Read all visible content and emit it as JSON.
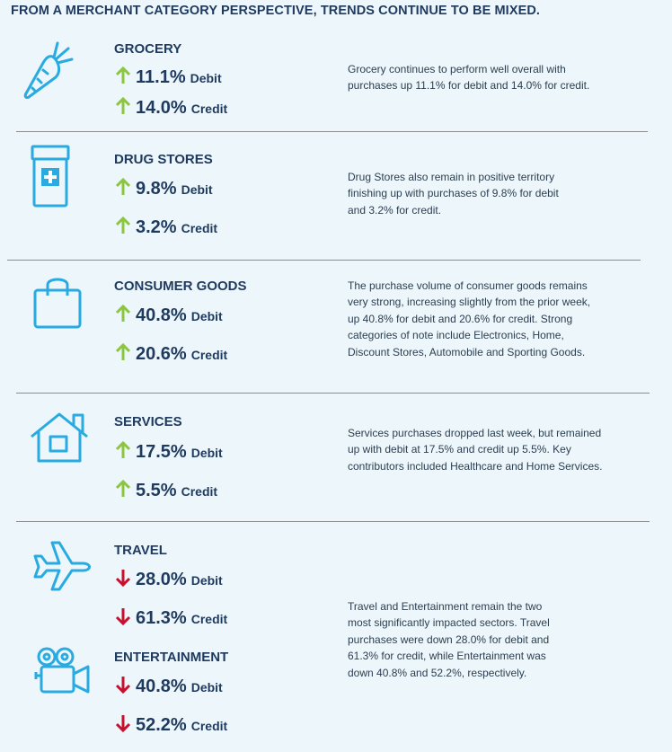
{
  "title": "FROM A MERCHANT CATEGORY PERSPECTIVE, TRENDS CONTINUE TO BE MIXED.",
  "colors": {
    "up": "#8cc63f",
    "down": "#c8102e",
    "icon": "#29abe2",
    "text": "#1f3a5f"
  },
  "sections": [
    {
      "name": "GROCERY",
      "icon": "carrot-icon",
      "debit": {
        "direction": "up",
        "value": "11.1%",
        "label": "Debit"
      },
      "credit": {
        "direction": "up",
        "value": "14.0%",
        "label": "Credit"
      }
    },
    {
      "name": "DRUG STORES",
      "icon": "medicine-bottle-icon",
      "debit": {
        "direction": "up",
        "value": "9.8%",
        "label": "Debit"
      },
      "credit": {
        "direction": "up",
        "value": "3.2%",
        "label": "Credit"
      }
    },
    {
      "name": "CONSUMER GOODS",
      "icon": "shopping-bag-icon",
      "debit": {
        "direction": "up",
        "value": "40.8%",
        "label": "Debit"
      },
      "credit": {
        "direction": "up",
        "value": "20.6%",
        "label": "Credit"
      }
    },
    {
      "name": "SERVICES",
      "icon": "house-icon",
      "debit": {
        "direction": "up",
        "value": "17.5%",
        "label": "Debit"
      },
      "credit": {
        "direction": "up",
        "value": "5.5%",
        "label": "Credit"
      }
    },
    {
      "name": "TRAVEL",
      "icon": "airplane-icon",
      "debit": {
        "direction": "down",
        "value": "28.0%",
        "label": "Debit"
      },
      "credit": {
        "direction": "down",
        "value": "61.3%",
        "label": "Credit"
      }
    },
    {
      "name": "ENTERTAINMENT",
      "icon": "movie-camera-icon",
      "debit": {
        "direction": "down",
        "value": "40.8%",
        "label": "Debit"
      },
      "credit": {
        "direction": "down",
        "value": "52.2%",
        "label": "Credit"
      }
    }
  ],
  "descriptions": {
    "grocery": [
      "Grocery continues to perform well overall with",
      "purchases up 11.1% for debit and 14.0% for credit."
    ],
    "drug_stores": [
      "Drug Stores also remain in positive territory",
      "finishing up with purchases of 9.8% for debit",
      "and 3.2% for credit."
    ],
    "consumer_goods": [
      "The purchase volume of consumer goods remains",
      "very strong, increasing slightly from the prior week,",
      "up 40.8% for debit and 20.6% for credit. Strong",
      "categories of note include Electronics, Home,",
      "Discount Stores, Automobile and Sporting Goods."
    ],
    "services": [
      "Services purchases dropped last week, but remained",
      "up with debit at 17.5% and credit up 5.5%. Key",
      "contributors included Healthcare and Home Services."
    ],
    "travel_entertainment": [
      "Travel and Entertainment remain the two",
      "most significantly impacted sectors. Travel",
      "purchases were down 28.0% for debit and",
      "61.3% for credit, while Entertainment was",
      "down 40.8% and 52.2%, respectively."
    ]
  }
}
